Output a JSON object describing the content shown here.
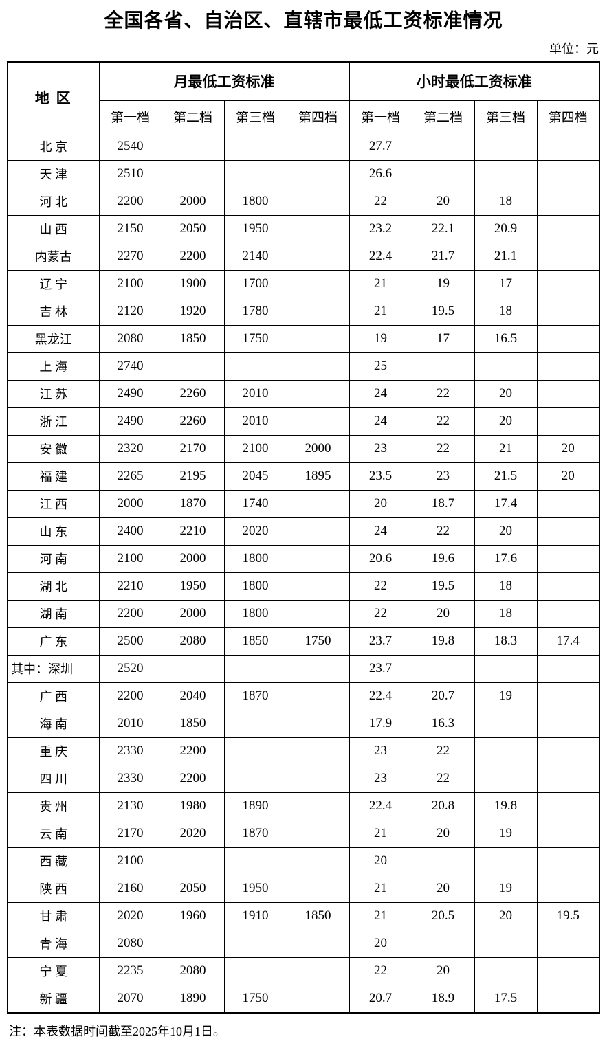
{
  "page": {
    "title": "全国各省、自治区、直辖市最低工资标准情况",
    "unit_label": "单位：元",
    "note": "注：本表数据时间截至2025年10月1日。"
  },
  "table": {
    "region_header": "地 区",
    "group_headers": {
      "monthly": "月最低工资标准",
      "hourly": "小时最低工资标准"
    },
    "tier_headers": [
      "第一档",
      "第二档",
      "第三档",
      "第四档"
    ],
    "rows": [
      {
        "region": "北 京",
        "monthly": [
          "2540",
          "",
          "",
          ""
        ],
        "hourly": [
          "27.7",
          "",
          "",
          ""
        ]
      },
      {
        "region": "天 津",
        "monthly": [
          "2510",
          "",
          "",
          ""
        ],
        "hourly": [
          "26.6",
          "",
          "",
          ""
        ]
      },
      {
        "region": "河 北",
        "monthly": [
          "2200",
          "2000",
          "1800",
          ""
        ],
        "hourly": [
          "22",
          "20",
          "18",
          ""
        ]
      },
      {
        "region": "山 西",
        "monthly": [
          "2150",
          "2050",
          "1950",
          ""
        ],
        "hourly": [
          "23.2",
          "22.1",
          "20.9",
          ""
        ]
      },
      {
        "region": "内蒙古",
        "monthly": [
          "2270",
          "2200",
          "2140",
          ""
        ],
        "hourly": [
          "22.4",
          "21.7",
          "21.1",
          ""
        ]
      },
      {
        "region": "辽 宁",
        "monthly": [
          "2100",
          "1900",
          "1700",
          ""
        ],
        "hourly": [
          "21",
          "19",
          "17",
          ""
        ]
      },
      {
        "region": "吉 林",
        "monthly": [
          "2120",
          "1920",
          "1780",
          ""
        ],
        "hourly": [
          "21",
          "19.5",
          "18",
          ""
        ]
      },
      {
        "region": "黑龙江",
        "monthly": [
          "2080",
          "1850",
          "1750",
          ""
        ],
        "hourly": [
          "19",
          "17",
          "16.5",
          ""
        ]
      },
      {
        "region": "上 海",
        "monthly": [
          "2740",
          "",
          "",
          ""
        ],
        "hourly": [
          "25",
          "",
          "",
          ""
        ]
      },
      {
        "region": "江 苏",
        "monthly": [
          "2490",
          "2260",
          "2010",
          ""
        ],
        "hourly": [
          "24",
          "22",
          "20",
          ""
        ]
      },
      {
        "region": "浙 江",
        "monthly": [
          "2490",
          "2260",
          "2010",
          ""
        ],
        "hourly": [
          "24",
          "22",
          "20",
          ""
        ]
      },
      {
        "region": "安 徽",
        "monthly": [
          "2320",
          "2170",
          "2100",
          "2000"
        ],
        "hourly": [
          "23",
          "22",
          "21",
          "20"
        ]
      },
      {
        "region": "福 建",
        "monthly": [
          "2265",
          "2195",
          "2045",
          "1895"
        ],
        "hourly": [
          "23.5",
          "23",
          "21.5",
          "20"
        ]
      },
      {
        "region": "江 西",
        "monthly": [
          "2000",
          "1870",
          "1740",
          ""
        ],
        "hourly": [
          "20",
          "18.7",
          "17.4",
          ""
        ]
      },
      {
        "region": "山 东",
        "monthly": [
          "2400",
          "2210",
          "2020",
          ""
        ],
        "hourly": [
          "24",
          "22",
          "20",
          ""
        ]
      },
      {
        "region": "河 南",
        "monthly": [
          "2100",
          "2000",
          "1800",
          ""
        ],
        "hourly": [
          "20.6",
          "19.6",
          "17.6",
          ""
        ]
      },
      {
        "region": "湖 北",
        "monthly": [
          "2210",
          "1950",
          "1800",
          ""
        ],
        "hourly": [
          "22",
          "19.5",
          "18",
          ""
        ]
      },
      {
        "region": "湖 南",
        "monthly": [
          "2200",
          "2000",
          "1800",
          ""
        ],
        "hourly": [
          "22",
          "20",
          "18",
          ""
        ]
      },
      {
        "region": "广 东",
        "monthly": [
          "2500",
          "2080",
          "1850",
          "1750"
        ],
        "hourly": [
          "23.7",
          "19.8",
          "18.3",
          "17.4"
        ]
      },
      {
        "region": "其中：深圳",
        "align": "left",
        "monthly": [
          "2520",
          "",
          "",
          ""
        ],
        "hourly": [
          "23.7",
          "",
          "",
          ""
        ]
      },
      {
        "region": "广 西",
        "monthly": [
          "2200",
          "2040",
          "1870",
          ""
        ],
        "hourly": [
          "22.4",
          "20.7",
          "19",
          ""
        ]
      },
      {
        "region": "海 南",
        "monthly": [
          "2010",
          "1850",
          "",
          ""
        ],
        "hourly": [
          "17.9",
          "16.3",
          "",
          ""
        ]
      },
      {
        "region": "重 庆",
        "monthly": [
          "2330",
          "2200",
          "",
          ""
        ],
        "hourly": [
          "23",
          "22",
          "",
          ""
        ]
      },
      {
        "region": "四 川",
        "monthly": [
          "2330",
          "2200",
          "",
          ""
        ],
        "hourly": [
          "23",
          "22",
          "",
          ""
        ]
      },
      {
        "region": "贵 州",
        "monthly": [
          "2130",
          "1980",
          "1890",
          ""
        ],
        "hourly": [
          "22.4",
          "20.8",
          "19.8",
          ""
        ]
      },
      {
        "region": "云 南",
        "monthly": [
          "2170",
          "2020",
          "1870",
          ""
        ],
        "hourly": [
          "21",
          "20",
          "19",
          ""
        ]
      },
      {
        "region": "西 藏",
        "monthly": [
          "2100",
          "",
          "",
          ""
        ],
        "hourly": [
          "20",
          "",
          "",
          ""
        ]
      },
      {
        "region": "陕 西",
        "monthly": [
          "2160",
          "2050",
          "1950",
          ""
        ],
        "hourly": [
          "21",
          "20",
          "19",
          ""
        ]
      },
      {
        "region": "甘 肃",
        "monthly": [
          "2020",
          "1960",
          "1910",
          "1850"
        ],
        "hourly": [
          "21",
          "20.5",
          "20",
          "19.5"
        ]
      },
      {
        "region": "青 海",
        "monthly": [
          "2080",
          "",
          "",
          ""
        ],
        "hourly": [
          "20",
          "",
          "",
          ""
        ]
      },
      {
        "region": "宁 夏",
        "monthly": [
          "2235",
          "2080",
          "",
          ""
        ],
        "hourly": [
          "22",
          "20",
          "",
          ""
        ]
      },
      {
        "region": "新 疆",
        "monthly": [
          "2070",
          "1890",
          "1750",
          ""
        ],
        "hourly": [
          "20.7",
          "18.9",
          "17.5",
          ""
        ]
      }
    ]
  }
}
